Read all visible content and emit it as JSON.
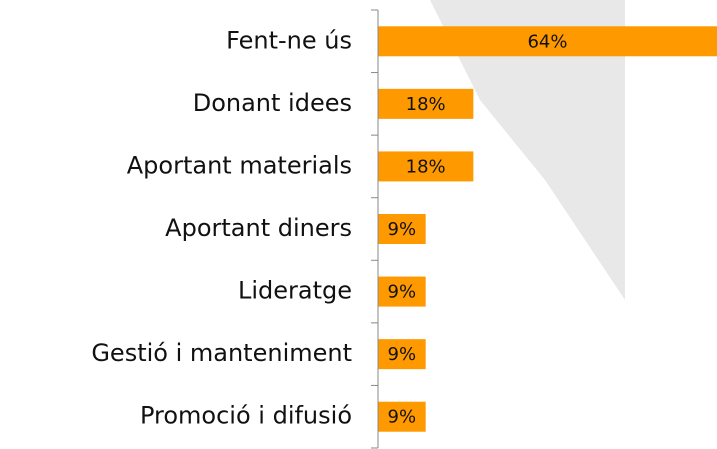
{
  "chart_data": {
    "type": "hbar",
    "categories": [
      "Fent-ne ús",
      "Donant idees",
      "Aportant materials",
      "Aportant diners",
      "Lideratge",
      "Gestió i manteniment",
      "Promoció i difusió"
    ],
    "values": [
      64,
      18,
      18,
      9,
      9,
      9,
      9
    ],
    "value_labels": [
      "64%",
      "18%",
      "18%",
      "9%",
      "9%",
      "9%",
      "9%"
    ],
    "color": "#ff9900",
    "xlim": [
      0,
      64
    ]
  }
}
